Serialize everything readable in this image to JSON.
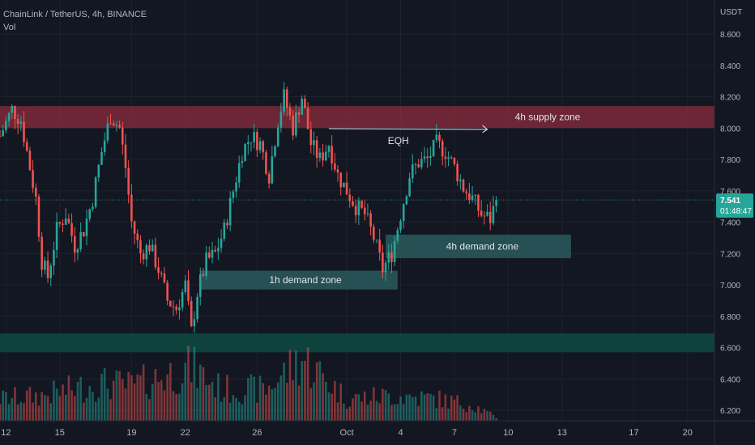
{
  "header": {
    "symbol_line": "ChainLink / TetherUS, 4h, BINANCE",
    "volume_label": "Vol"
  },
  "price_axis": {
    "currency": "USDT",
    "current_price": "7.541",
    "countdown": "01:48:47"
  },
  "colors": {
    "background": "#131722",
    "up": "#26a69a",
    "down": "#ef5350",
    "supply_zone": "#8b2c3c",
    "demand_zone": "#2a5a5c",
    "low_zone": "#0e4a42",
    "price_tag": "#26a69a"
  },
  "annotations": {
    "supply_4h": "4h supply zone",
    "demand_4h": "4h demand zone",
    "demand_1h": "1h demand zone",
    "eqh": "EQH"
  },
  "chart_data": {
    "type": "candlestick",
    "ylim": [
      6.15,
      8.75
    ],
    "yticks": [
      6.2,
      6.4,
      6.6,
      6.8,
      7.0,
      7.2,
      7.4,
      7.6,
      7.8,
      8.0,
      8.2,
      8.4,
      8.6
    ],
    "ytick_labels": [
      "6.200",
      "6.400",
      "6.600",
      "6.800",
      "7.000",
      "7.200",
      "7.400",
      "7.600",
      "7.800",
      "8.000",
      "8.200",
      "8.400",
      "8.600"
    ],
    "x_domain": [
      "2024-09-11T16:00",
      "2024-10-21T12:00"
    ],
    "xticks": [
      {
        "date": "2024-09-12",
        "label": "12"
      },
      {
        "date": "2024-09-15",
        "label": "15"
      },
      {
        "date": "2024-09-19",
        "label": "19"
      },
      {
        "date": "2024-09-22",
        "label": "22"
      },
      {
        "date": "2024-09-26",
        "label": "26"
      },
      {
        "date": "2024-10-01",
        "label": "Oct"
      },
      {
        "date": "2024-10-04",
        "label": "4"
      },
      {
        "date": "2024-10-07",
        "label": "7"
      },
      {
        "date": "2024-10-10",
        "label": "10"
      },
      {
        "date": "2024-10-13",
        "label": "13"
      },
      {
        "date": "2024-10-17",
        "label": "17"
      },
      {
        "date": "2024-10-20",
        "label": "20"
      }
    ],
    "close_path": [
      [
        "2024-09-11T16:00",
        7.95
      ],
      [
        "2024-09-12T08:00",
        8.12
      ],
      [
        "2024-09-12T20:00",
        8.05
      ],
      [
        "2024-09-13T08:00",
        7.75
      ],
      [
        "2024-09-13T16:00",
        7.55
      ],
      [
        "2024-09-14T00:00",
        7.15
      ],
      [
        "2024-09-14T08:00",
        7.05
      ],
      [
        "2024-09-14T20:00",
        7.35
      ],
      [
        "2024-09-15T08:00",
        7.45
      ],
      [
        "2024-09-15T20:00",
        7.25
      ],
      [
        "2024-09-16T08:00",
        7.35
      ],
      [
        "2024-09-16T20:00",
        7.55
      ],
      [
        "2024-09-17T08:00",
        7.85
      ],
      [
        "2024-09-17T20:00",
        8.08
      ],
      [
        "2024-09-18T08:00",
        8.0
      ],
      [
        "2024-09-18T16:00",
        7.75
      ],
      [
        "2024-09-19T00:00",
        7.4
      ],
      [
        "2024-09-19T12:00",
        7.2
      ],
      [
        "2024-09-20T00:00",
        7.25
      ],
      [
        "2024-09-20T12:00",
        7.1
      ],
      [
        "2024-09-21T00:00",
        6.9
      ],
      [
        "2024-09-21T12:00",
        6.85
      ],
      [
        "2024-09-22T00:00",
        7.0
      ],
      [
        "2024-09-22T08:00",
        6.7
      ],
      [
        "2024-09-22T16:00",
        6.95
      ],
      [
        "2024-09-23T04:00",
        7.15
      ],
      [
        "2024-09-23T16:00",
        7.2
      ],
      [
        "2024-09-24T04:00",
        7.35
      ],
      [
        "2024-09-24T16:00",
        7.6
      ],
      [
        "2024-09-25T04:00",
        7.85
      ],
      [
        "2024-09-25T16:00",
        7.95
      ],
      [
        "2024-09-26T04:00",
        7.9
      ],
      [
        "2024-09-26T16:00",
        7.7
      ],
      [
        "2024-09-27T04:00",
        8.05
      ],
      [
        "2024-09-27T12:00",
        8.2
      ],
      [
        "2024-09-28T00:00",
        8.0
      ],
      [
        "2024-09-28T12:00",
        8.2
      ],
      [
        "2024-09-29T00:00",
        7.9
      ],
      [
        "2024-09-29T12:00",
        7.8
      ],
      [
        "2024-09-30T00:00",
        7.9
      ],
      [
        "2024-09-30T12:00",
        7.7
      ],
      [
        "2024-10-01T00:00",
        7.6
      ],
      [
        "2024-10-01T12:00",
        7.5
      ],
      [
        "2024-10-02T00:00",
        7.45
      ],
      [
        "2024-10-02T12:00",
        7.3
      ],
      [
        "2024-10-03T00:00",
        7.1
      ],
      [
        "2024-10-03T12:00",
        7.2
      ],
      [
        "2024-10-04T00:00",
        7.45
      ],
      [
        "2024-10-04T12:00",
        7.7
      ],
      [
        "2024-10-05T00:00",
        7.78
      ],
      [
        "2024-10-05T12:00",
        7.8
      ],
      [
        "2024-10-06T00:00",
        7.9
      ],
      [
        "2024-10-06T12:00",
        7.85
      ],
      [
        "2024-10-07T00:00",
        7.75
      ],
      [
        "2024-10-07T12:00",
        7.62
      ],
      [
        "2024-10-08T00:00",
        7.55
      ],
      [
        "2024-10-08T12:00",
        7.45
      ],
      [
        "2024-10-09T00:00",
        7.42
      ],
      [
        "2024-10-09T08:00",
        7.541
      ]
    ],
    "volume_profile": [
      [
        "2024-09-11T16:00",
        0.35
      ],
      [
        "2024-09-14T00:00",
        0.4
      ],
      [
        "2024-09-17T08:00",
        0.6
      ],
      [
        "2024-09-19T00:00",
        0.55
      ],
      [
        "2024-09-22T08:00",
        0.85
      ],
      [
        "2024-09-24T00:00",
        0.5
      ],
      [
        "2024-09-26T12:00",
        0.5
      ],
      [
        "2024-09-28T12:00",
        1.0
      ],
      [
        "2024-10-01T00:00",
        0.35
      ],
      [
        "2024-10-03T12:00",
        0.4
      ],
      [
        "2024-10-06T00:00",
        0.35
      ],
      [
        "2024-10-08T00:00",
        0.25
      ],
      [
        "2024-10-09T08:00",
        0.05
      ]
    ],
    "zones": [
      {
        "name": "4h supply zone",
        "y_low": 8.0,
        "y_high": 8.14,
        "x_start": "2024-09-11T16:00",
        "x_end": "2024-10-21T12:00"
      },
      {
        "name": "4h demand zone",
        "y_low": 7.17,
        "y_high": 7.32,
        "x_start": "2024-10-03T04:00",
        "x_end": "2024-10-13T12:00"
      },
      {
        "name": "1h demand zone",
        "y_low": 6.97,
        "y_high": 7.09,
        "x_start": "2024-09-22T20:00",
        "x_end": "2024-10-03T20:00"
      },
      {
        "name": "",
        "y_low": 6.57,
        "y_high": 6.69,
        "x_start": "2024-09-11T16:00",
        "x_end": "2024-10-21T12:00"
      }
    ],
    "eqh": {
      "label": "EQH",
      "y": 7.95,
      "x_start": "2024-09-30T00:00",
      "x_end": "2024-10-08T20:00"
    },
    "last_price": 7.541
  }
}
